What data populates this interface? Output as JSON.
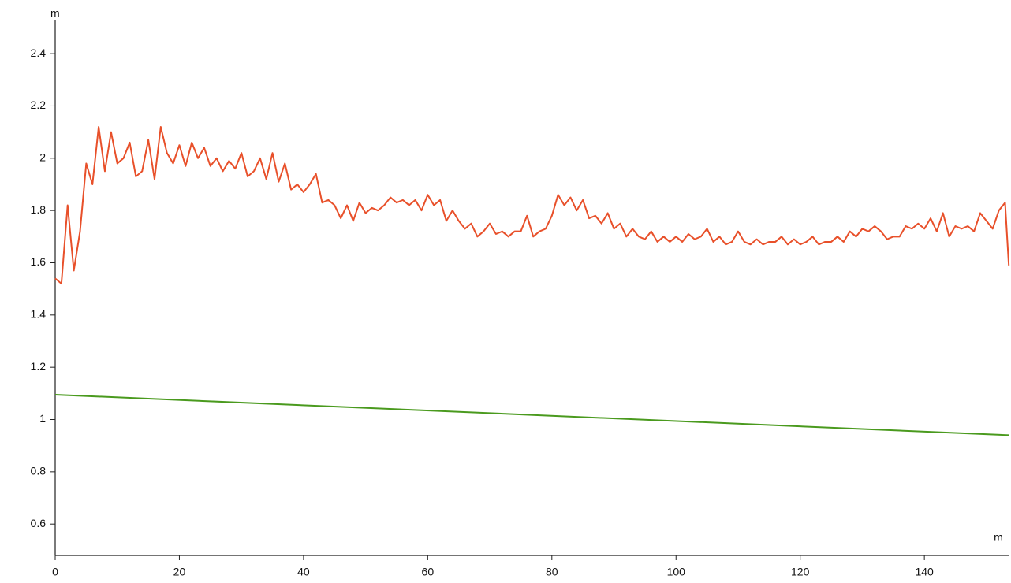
{
  "chart_data": {
    "type": "line",
    "y_label": "m",
    "x_label": "m",
    "xlim": [
      0,
      153.7
    ],
    "ylim": [
      0.48,
      2.53
    ],
    "xticks": [
      0,
      20,
      40,
      60,
      80,
      100,
      120,
      140
    ],
    "yticks": [
      0.6,
      0.8,
      1,
      1.2,
      1.4,
      1.6,
      1.8,
      2,
      2.2,
      2.4
    ],
    "grid": false,
    "series": [
      {
        "color": "#e8502a",
        "x": [
          0,
          1,
          2,
          3,
          4,
          5,
          6,
          7,
          8,
          9,
          10,
          11,
          12,
          13,
          14,
          15,
          16,
          17,
          18,
          19,
          20,
          21,
          22,
          23,
          24,
          25,
          26,
          27,
          28,
          29,
          30,
          31,
          32,
          33,
          34,
          35,
          36,
          37,
          38,
          39,
          40,
          41,
          42,
          43,
          44,
          45,
          46,
          47,
          48,
          49,
          50,
          51,
          52,
          53,
          54,
          55,
          56,
          57,
          58,
          59,
          60,
          61,
          62,
          63,
          64,
          65,
          66,
          67,
          68,
          69,
          70,
          71,
          72,
          73,
          74,
          75,
          76,
          77,
          78,
          79,
          80,
          81,
          82,
          83,
          84,
          85,
          86,
          87,
          88,
          89,
          90,
          91,
          92,
          93,
          94,
          95,
          96,
          97,
          98,
          99,
          100,
          101,
          102,
          103,
          104,
          105,
          106,
          107,
          108,
          109,
          110,
          111,
          112,
          113,
          114,
          115,
          116,
          117,
          118,
          119,
          120,
          121,
          122,
          123,
          124,
          125,
          126,
          127,
          128,
          129,
          130,
          131,
          132,
          133,
          134,
          135,
          136,
          137,
          138,
          139,
          140,
          141,
          142,
          143,
          144,
          145,
          146,
          147,
          148,
          149,
          150,
          151,
          152,
          153,
          153.6
        ],
        "values": [
          1.54,
          1.52,
          1.82,
          1.57,
          1.72,
          1.98,
          1.9,
          2.12,
          1.95,
          2.1,
          1.98,
          2.0,
          2.06,
          1.93,
          1.95,
          2.07,
          1.92,
          2.12,
          2.02,
          1.98,
          2.05,
          1.97,
          2.06,
          2.0,
          2.04,
          1.97,
          2.0,
          1.95,
          1.99,
          1.96,
          2.02,
          1.93,
          1.95,
          2.0,
          1.92,
          2.02,
          1.91,
          1.98,
          1.88,
          1.9,
          1.87,
          1.9,
          1.94,
          1.83,
          1.84,
          1.82,
          1.77,
          1.82,
          1.76,
          1.83,
          1.79,
          1.81,
          1.8,
          1.82,
          1.85,
          1.83,
          1.84,
          1.82,
          1.84,
          1.8,
          1.86,
          1.82,
          1.84,
          1.76,
          1.8,
          1.76,
          1.73,
          1.75,
          1.7,
          1.72,
          1.75,
          1.71,
          1.72,
          1.7,
          1.72,
          1.72,
          1.78,
          1.7,
          1.72,
          1.73,
          1.78,
          1.86,
          1.82,
          1.85,
          1.8,
          1.84,
          1.77,
          1.78,
          1.75,
          1.79,
          1.73,
          1.75,
          1.7,
          1.73,
          1.7,
          1.69,
          1.72,
          1.68,
          1.7,
          1.68,
          1.7,
          1.68,
          1.71,
          1.69,
          1.7,
          1.73,
          1.68,
          1.7,
          1.67,
          1.68,
          1.72,
          1.68,
          1.67,
          1.69,
          1.67,
          1.68,
          1.68,
          1.7,
          1.67,
          1.69,
          1.67,
          1.68,
          1.7,
          1.67,
          1.68,
          1.68,
          1.7,
          1.68,
          1.72,
          1.7,
          1.73,
          1.72,
          1.74,
          1.72,
          1.69,
          1.7,
          1.7,
          1.74,
          1.73,
          1.75,
          1.73,
          1.77,
          1.72,
          1.79,
          1.7,
          1.74,
          1.73,
          1.74,
          1.72,
          1.79,
          1.76,
          1.73,
          1.8,
          1.83,
          1.59
        ]
      },
      {
        "color": "#4a9a1e",
        "x": [
          0,
          153.7
        ],
        "values": [
          1.095,
          0.94
        ]
      }
    ]
  }
}
